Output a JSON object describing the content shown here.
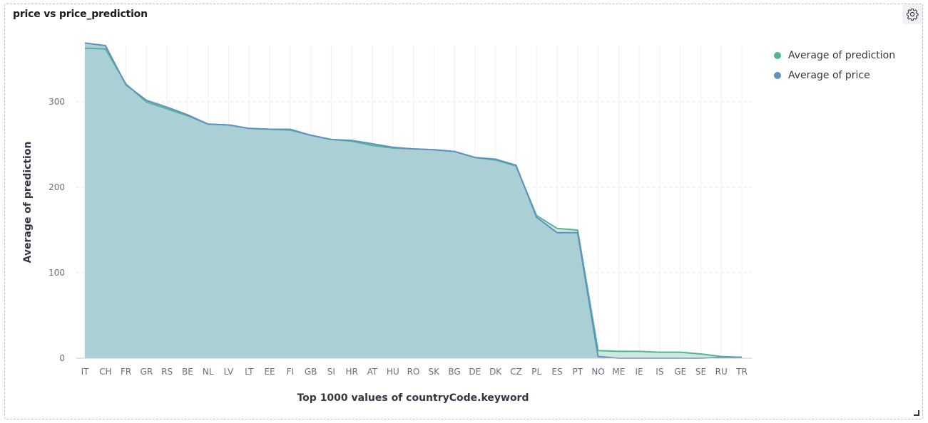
{
  "panel": {
    "title": "price vs price_prediction"
  },
  "icons": {
    "settings": "gear-icon",
    "resize": "resize-handle-icon"
  },
  "colors": {
    "prediction": "#54b399",
    "price": "#6092c0",
    "fill": "#a8cdd4",
    "prediction_fill": "#c9e6d8"
  },
  "legend": [
    {
      "label": "Average of prediction",
      "color": "#54b399"
    },
    {
      "label": "Average of price",
      "color": "#6092c0"
    }
  ],
  "chart_data": {
    "type": "area",
    "title": "price vs price_prediction",
    "xlabel": "Top 1000 values of countryCode.keyword",
    "ylabel": "Average of prediction",
    "ylim": [
      0,
      366
    ],
    "yticks": [
      0,
      100,
      200,
      300
    ],
    "grid": true,
    "legend_position": "top-right",
    "categories": [
      "IT",
      "CH",
      "FR",
      "GR",
      "RS",
      "BE",
      "NL",
      "LV",
      "LT",
      "EE",
      "FI",
      "GB",
      "SI",
      "HR",
      "AT",
      "HU",
      "RO",
      "SK",
      "BG",
      "DE",
      "DK",
      "CZ",
      "PL",
      "ES",
      "PT",
      "NO",
      "ME",
      "IE",
      "IS",
      "GE",
      "SE",
      "RU",
      "TR"
    ],
    "series": [
      {
        "name": "Average of prediction",
        "values": [
          363,
          362,
          321,
          300,
          292,
          284,
          274,
          273,
          269,
          268,
          267,
          261,
          256,
          254,
          249,
          246,
          245,
          244,
          242,
          235,
          232,
          225,
          167,
          152,
          150,
          9,
          8,
          8,
          7,
          7,
          5,
          2,
          1
        ]
      },
      {
        "name": "Average of price",
        "values": [
          369,
          366,
          320,
          302,
          294,
          285,
          274,
          273,
          269,
          268,
          268,
          261,
          256,
          255,
          251,
          247,
          245,
          244,
          242,
          235,
          233,
          226,
          165,
          147,
          147,
          2,
          0,
          0,
          0,
          0,
          0,
          1,
          1
        ]
      }
    ]
  }
}
